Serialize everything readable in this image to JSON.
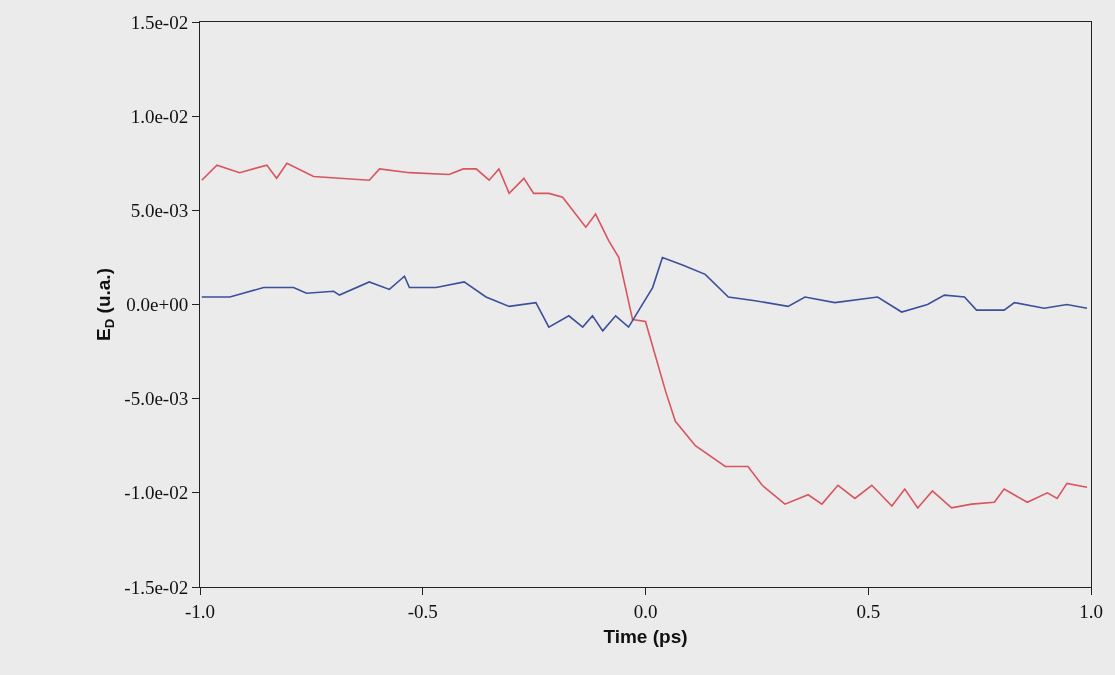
{
  "chart_data": {
    "type": "line",
    "xlabel": "Time (ps)",
    "ylabel": "E$_{D}$ (u.a.)",
    "xlim": [
      -1,
      1
    ],
    "ylim": [
      -0.015,
      0.015
    ],
    "xticks": [
      {
        "value": -1,
        "label": "-1.0"
      },
      {
        "value": -0.5,
        "label": "-0.5"
      },
      {
        "value": 0,
        "label": "0.0"
      },
      {
        "value": 0.5,
        "label": "0.5"
      },
      {
        "value": 1,
        "label": "1.0"
      }
    ],
    "yticks": [
      {
        "value": -0.015,
        "label": "-1.5e-02"
      },
      {
        "value": -0.01,
        "label": "-1.0e-02"
      },
      {
        "value": -0.005,
        "label": "-5.0e-03"
      },
      {
        "value": 0,
        "label": "0.0e+00"
      },
      {
        "value": 0.005,
        "label": "5.0e-03"
      },
      {
        "value": 0.01,
        "label": "1.0e-02"
      },
      {
        "value": 0.015,
        "label": "1.5e-02"
      }
    ],
    "marker": "none",
    "line_style": "solid",
    "series": [
      {
        "color": "#d9545e",
        "x": [
          -0.996,
          -0.962,
          -0.911,
          -0.85,
          -0.828,
          -0.805,
          -0.745,
          -0.687,
          -0.62,
          -0.597,
          -0.53,
          -0.441,
          -0.409,
          -0.38,
          -0.351,
          -0.329,
          -0.306,
          -0.273,
          -0.251,
          -0.217,
          -0.186,
          -0.134,
          -0.112,
          -0.083,
          -0.06,
          -0.029,
          0,
          0.045,
          0.067,
          0.112,
          0.179,
          0.23,
          0.262,
          0.313,
          0.365,
          0.396,
          0.432,
          0.47,
          0.508,
          0.553,
          0.582,
          0.611,
          0.644,
          0.687,
          0.732,
          0.783,
          0.805,
          0.857,
          0.902,
          0.924,
          0.946,
          0.991
        ],
        "values": [
          0.0066,
          0.0074,
          0.007,
          0.0074,
          0.0067,
          0.0075,
          0.0068,
          0.0067,
          0.0066,
          0.0072,
          0.007,
          0.0069,
          0.0072,
          0.0072,
          0.0066,
          0.0072,
          0.0059,
          0.0067,
          0.0059,
          0.0059,
          0.0057,
          0.0041,
          0.0048,
          0.0034,
          0.0025,
          -0.0008,
          -0.0009,
          -0.0046,
          -0.0062,
          -0.0075,
          -0.0086,
          -0.0086,
          -0.0096,
          -0.0106,
          -0.0101,
          -0.0106,
          -0.0096,
          -0.0103,
          -0.0096,
          -0.0107,
          -0.0098,
          -0.0108,
          -0.0099,
          -0.0108,
          -0.0106,
          -0.0105,
          -0.0098,
          -0.0105,
          -0.01,
          -0.0103,
          -0.0095,
          -0.0097
        ]
      },
      {
        "color": "#3b4f9a",
        "x": [
          -0.996,
          -0.933,
          -0.857,
          -0.79,
          -0.761,
          -0.7,
          -0.687,
          -0.62,
          -0.575,
          -0.541,
          -0.53,
          -0.47,
          -0.407,
          -0.358,
          -0.306,
          -0.246,
          -0.217,
          -0.172,
          -0.141,
          -0.119,
          -0.096,
          -0.067,
          -0.038,
          0.016,
          0.038,
          0.083,
          0.134,
          0.186,
          0.246,
          0.32,
          0.358,
          0.425,
          0.521,
          0.575,
          0.633,
          0.671,
          0.716,
          0.743,
          0.805,
          0.828,
          0.895,
          0.946,
          0.991
        ],
        "values": [
          0.0004,
          0.0004,
          0.0009,
          0.0009,
          0.0006,
          0.0007,
          0.0005,
          0.0012,
          0.0008,
          0.0015,
          0.0009,
          0.0009,
          0.0012,
          0.0004,
          -0.0001,
          0.0001,
          -0.0012,
          -0.0006,
          -0.0012,
          -0.0006,
          -0.0014,
          -0.0006,
          -0.0012,
          0.0009,
          0.0025,
          0.0021,
          0.0016,
          0.0004,
          0.0002,
          -0.0001,
          0.0004,
          0.0001,
          0.0004,
          -0.0004,
          0,
          0.0005,
          0.0004,
          -0.0003,
          -0.0003,
          0.0001,
          -0.0002,
          0,
          -0.0002
        ]
      }
    ]
  }
}
